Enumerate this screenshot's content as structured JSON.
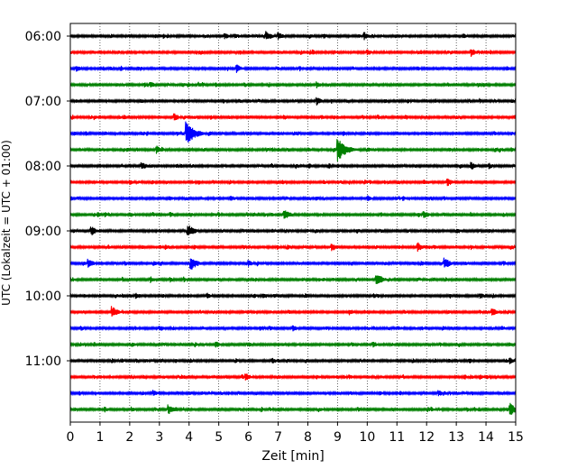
{
  "chart_data": {
    "type": "line",
    "title": "",
    "xlabel": "Zeit  [min]",
    "ylabel": "UTC (Lokalzeit = UTC + 01:00)",
    "xlim": [
      0,
      15
    ],
    "x_ticks": [
      "0",
      "1",
      "2",
      "3",
      "4",
      "5",
      "6",
      "7",
      "8",
      "9",
      "10",
      "11",
      "12",
      "13",
      "14",
      "15"
    ],
    "y_ticks": [
      {
        "label": "06:00",
        "row": 0
      },
      {
        "label": "07:00",
        "row": 4
      },
      {
        "label": "08:00",
        "row": 8
      },
      {
        "label": "09:00",
        "row": 12
      },
      {
        "label": "10:00",
        "row": 16
      },
      {
        "label": "11:00",
        "row": 20
      }
    ],
    "grid_x": true,
    "trace_interval_min": 15,
    "color_cycle": [
      "#000000",
      "#ff0000",
      "#0000ff",
      "#008000"
    ],
    "traces": [
      {
        "start": "06:00",
        "events": [
          [
            5.2,
            4
          ],
          [
            6.6,
            6
          ],
          [
            7.0,
            5
          ],
          [
            9.9,
            5
          ]
        ]
      },
      {
        "start": "06:15",
        "events": [
          [
            10.0,
            4
          ],
          [
            13.5,
            5
          ]
        ]
      },
      {
        "start": "06:30",
        "events": [
          [
            0.2,
            4
          ],
          [
            5.6,
            5
          ]
        ]
      },
      {
        "start": "06:45",
        "events": [
          [
            2.7,
            4
          ],
          [
            8.3,
            4
          ]
        ]
      },
      {
        "start": "07:00",
        "events": [
          [
            8.3,
            5
          ]
        ]
      },
      {
        "start": "07:15",
        "events": [
          [
            3.5,
            5
          ]
        ]
      },
      {
        "start": "07:30",
        "events": [
          [
            3.9,
            14
          ],
          [
            4.0,
            10
          ]
        ]
      },
      {
        "start": "07:45",
        "events": [
          [
            9.0,
            14
          ],
          [
            2.9,
            5
          ]
        ]
      },
      {
        "start": "08:00",
        "events": [
          [
            2.4,
            5
          ],
          [
            13.5,
            5
          ],
          [
            14.1,
            4
          ]
        ]
      },
      {
        "start": "08:15",
        "events": [
          [
            2.0,
            4
          ],
          [
            12.7,
            5
          ]
        ]
      },
      {
        "start": "08:30",
        "events": [
          [
            5.4,
            4
          ],
          [
            10.0,
            4
          ]
        ]
      },
      {
        "start": "08:45",
        "events": [
          [
            7.2,
            7
          ],
          [
            11.9,
            5
          ]
        ]
      },
      {
        "start": "09:00",
        "events": [
          [
            0.7,
            6
          ],
          [
            3.95,
            8
          ]
        ]
      },
      {
        "start": "09:15",
        "events": [
          [
            8.8,
            5
          ],
          [
            11.7,
            6
          ]
        ]
      },
      {
        "start": "09:30",
        "events": [
          [
            0.6,
            6
          ],
          [
            4.05,
            9
          ],
          [
            12.6,
            7
          ],
          [
            6.0,
            4
          ]
        ]
      },
      {
        "start": "09:45",
        "events": [
          [
            10.3,
            8
          ],
          [
            2.7,
            4
          ]
        ]
      },
      {
        "start": "10:00",
        "events": [
          [
            2.2,
            4
          ],
          [
            4.6,
            4
          ],
          [
            6.5,
            4
          ],
          [
            13.8,
            4
          ]
        ]
      },
      {
        "start": "10:15",
        "events": [
          [
            1.4,
            7
          ],
          [
            9.4,
            4
          ],
          [
            14.2,
            5
          ]
        ]
      },
      {
        "start": "10:30",
        "events": [
          [
            3.0,
            4
          ],
          [
            7.5,
            4
          ]
        ]
      },
      {
        "start": "10:45",
        "events": [
          [
            4.9,
            4
          ],
          [
            10.2,
            4
          ]
        ]
      },
      {
        "start": "11:00",
        "events": [
          [
            6.8,
            4
          ],
          [
            14.8,
            4
          ]
        ]
      },
      {
        "start": "11:15",
        "events": [
          [
            5.9,
            5
          ]
        ]
      },
      {
        "start": "11:30",
        "events": [
          [
            2.8,
            4
          ],
          [
            12.4,
            4
          ]
        ]
      },
      {
        "start": "11:45",
        "events": [
          [
            3.3,
            6
          ],
          [
            14.8,
            8
          ]
        ]
      }
    ]
  }
}
